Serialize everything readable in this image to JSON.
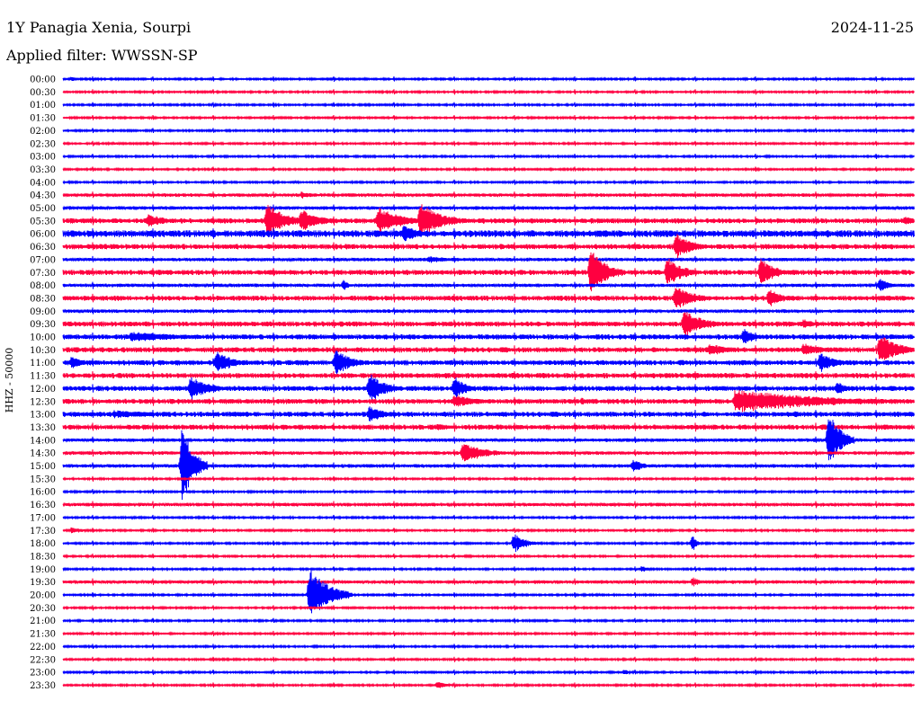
{
  "header": {
    "station": "1Y Panagia Xenia, Sourpi",
    "date": "2024-11-25",
    "filter": "Applied filter: WWSSN-SP"
  },
  "chart_data": {
    "type": "helicorder",
    "ylabel": "HHZ - 50000",
    "rows": [
      "00:00",
      "00:30",
      "01:00",
      "01:30",
      "02:00",
      "02:30",
      "03:00",
      "03:30",
      "04:00",
      "04:30",
      "05:00",
      "05:30",
      "06:00",
      "06:30",
      "07:00",
      "07:30",
      "08:00",
      "08:30",
      "09:00",
      "09:30",
      "10:00",
      "10:30",
      "11:00",
      "11:30",
      "12:00",
      "12:30",
      "13:00",
      "13:30",
      "14:00",
      "14:30",
      "15:00",
      "15:30",
      "16:00",
      "16:30",
      "17:00",
      "17:30",
      "18:00",
      "18:30",
      "19:00",
      "19:30",
      "20:00",
      "20:30",
      "21:00",
      "21:30",
      "22:00",
      "22:30",
      "23:00",
      "23:30"
    ],
    "colors": [
      "#0000ff",
      "#ff0040"
    ],
    "noise": [
      1,
      1,
      1,
      1,
      1,
      1,
      1,
      1,
      1,
      2,
      2,
      3,
      4,
      3,
      2,
      3,
      2,
      3,
      2,
      3,
      3,
      3,
      3,
      3,
      3,
      3,
      3,
      3,
      2,
      2,
      2,
      1,
      1,
      2,
      1,
      1,
      1,
      1,
      1,
      2,
      1,
      1,
      1,
      1,
      1,
      1,
      1,
      1
    ],
    "events": [
      {
        "row": 0,
        "x": 0.01,
        "amp": 3,
        "dur": 0.01
      },
      {
        "row": 5,
        "x": 0.06,
        "amp": 2,
        "dur": 0.03
      },
      {
        "row": 9,
        "x": 0.28,
        "amp": 4,
        "dur": 0.04
      },
      {
        "row": 11,
        "x": 0.1,
        "amp": 8,
        "dur": 0.05
      },
      {
        "row": 11,
        "x": 0.24,
        "amp": 20,
        "dur": 0.05
      },
      {
        "row": 11,
        "x": 0.28,
        "amp": 14,
        "dur": 0.05
      },
      {
        "row": 11,
        "x": 0.37,
        "amp": 16,
        "dur": 0.06
      },
      {
        "row": 11,
        "x": 0.42,
        "amp": 20,
        "dur": 0.06
      },
      {
        "row": 11,
        "x": 0.99,
        "amp": 6,
        "dur": 0.02
      },
      {
        "row": 12,
        "x": 0.4,
        "amp": 10,
        "dur": 0.05
      },
      {
        "row": 13,
        "x": 0.72,
        "amp": 16,
        "dur": 0.04
      },
      {
        "row": 14,
        "x": 0.43,
        "amp": 4,
        "dur": 0.08
      },
      {
        "row": 15,
        "x": 0.62,
        "amp": 28,
        "dur": 0.04
      },
      {
        "row": 15,
        "x": 0.71,
        "amp": 18,
        "dur": 0.04
      },
      {
        "row": 15,
        "x": 0.82,
        "amp": 16,
        "dur": 0.04
      },
      {
        "row": 16,
        "x": 0.33,
        "amp": 8,
        "dur": 0.01
      },
      {
        "row": 16,
        "x": 0.96,
        "amp": 10,
        "dur": 0.02
      },
      {
        "row": 17,
        "x": 0.72,
        "amp": 14,
        "dur": 0.05
      },
      {
        "row": 17,
        "x": 0.83,
        "amp": 12,
        "dur": 0.03
      },
      {
        "row": 19,
        "x": 0.73,
        "amp": 16,
        "dur": 0.05
      },
      {
        "row": 19,
        "x": 0.87,
        "amp": 6,
        "dur": 0.04
      },
      {
        "row": 20,
        "x": 0.08,
        "amp": 6,
        "dur": 0.16
      },
      {
        "row": 20,
        "x": 0.8,
        "amp": 10,
        "dur": 0.03
      },
      {
        "row": 21,
        "x": 0.76,
        "amp": 8,
        "dur": 0.05
      },
      {
        "row": 21,
        "x": 0.87,
        "amp": 8,
        "dur": 0.05
      },
      {
        "row": 21,
        "x": 0.96,
        "amp": 18,
        "dur": 0.05
      },
      {
        "row": 22,
        "x": 0.01,
        "amp": 8,
        "dur": 0.03
      },
      {
        "row": 22,
        "x": 0.18,
        "amp": 14,
        "dur": 0.04
      },
      {
        "row": 22,
        "x": 0.32,
        "amp": 16,
        "dur": 0.04
      },
      {
        "row": 22,
        "x": 0.89,
        "amp": 12,
        "dur": 0.04
      },
      {
        "row": 24,
        "x": 0.15,
        "amp": 14,
        "dur": 0.05
      },
      {
        "row": 24,
        "x": 0.36,
        "amp": 18,
        "dur": 0.04
      },
      {
        "row": 24,
        "x": 0.46,
        "amp": 14,
        "dur": 0.03
      },
      {
        "row": 24,
        "x": 0.91,
        "amp": 10,
        "dur": 0.02
      },
      {
        "row": 25,
        "x": 0.46,
        "amp": 8,
        "dur": 0.06
      },
      {
        "row": 25,
        "x": 0.61,
        "amp": 5,
        "dur": 0.01
      },
      {
        "row": 25,
        "x": 0.79,
        "amp": 14,
        "dur": 0.22
      },
      {
        "row": 26,
        "x": 0.06,
        "amp": 5,
        "dur": 0.12
      },
      {
        "row": 26,
        "x": 0.36,
        "amp": 10,
        "dur": 0.04
      },
      {
        "row": 26,
        "x": 0.86,
        "amp": 5,
        "dur": 0.01
      },
      {
        "row": 27,
        "x": 0.44,
        "amp": 4,
        "dur": 0.04
      },
      {
        "row": 28,
        "x": 0.9,
        "amp": 34,
        "dur": 0.03
      },
      {
        "row": 29,
        "x": 0.47,
        "amp": 12,
        "dur": 0.06
      },
      {
        "row": 30,
        "x": 0.14,
        "amp": 46,
        "dur": 0.03
      },
      {
        "row": 30,
        "x": 0.67,
        "amp": 8,
        "dur": 0.03
      },
      {
        "row": 35,
        "x": 0.01,
        "amp": 4,
        "dur": 0.03
      },
      {
        "row": 36,
        "x": 0.53,
        "amp": 12,
        "dur": 0.03
      },
      {
        "row": 36,
        "x": 0.74,
        "amp": 10,
        "dur": 0.01
      },
      {
        "row": 38,
        "x": 0.68,
        "amp": 4,
        "dur": 0.02
      },
      {
        "row": 39,
        "x": 0.74,
        "amp": 6,
        "dur": 0.02
      },
      {
        "row": 40,
        "x": 0.29,
        "amp": 30,
        "dur": 0.05
      },
      {
        "row": 46,
        "x": 0.66,
        "amp": 4,
        "dur": 0.01
      },
      {
        "row": 47,
        "x": 0.44,
        "amp": 4,
        "dur": 0.03
      }
    ]
  }
}
